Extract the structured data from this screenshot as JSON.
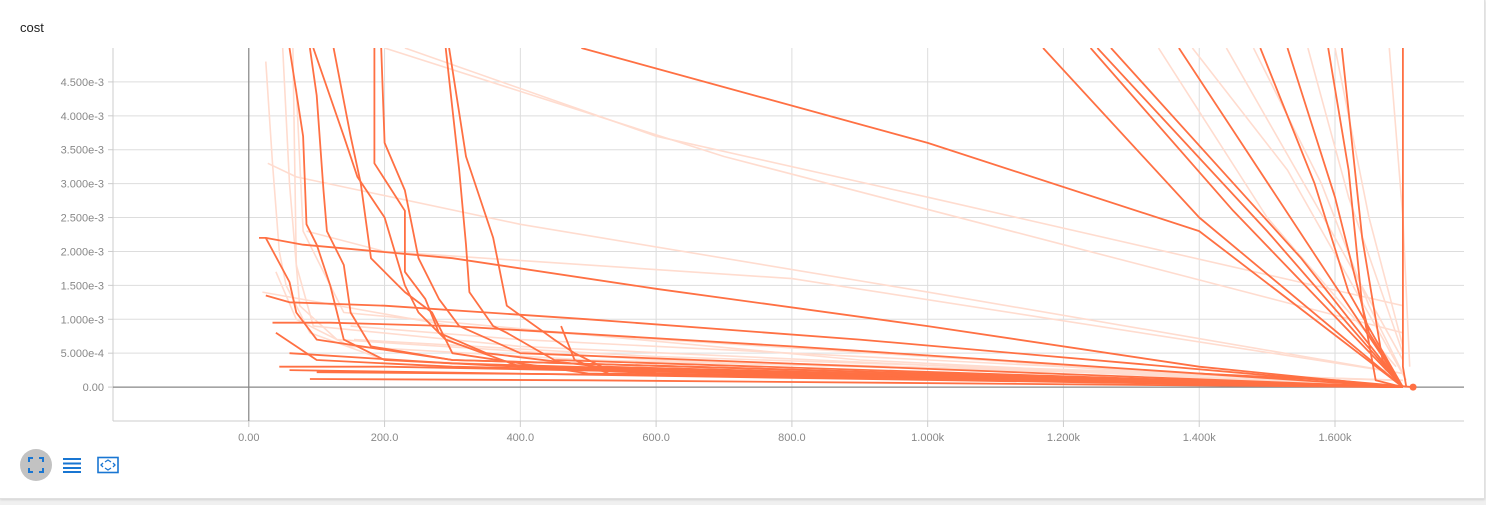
{
  "card": {
    "title": "cost"
  },
  "colors": {
    "run_main": "#ff7043",
    "run_smoothed_background": "#ffdccf",
    "axis": "#888888",
    "grid": "#dddddd"
  },
  "toolbar": {
    "buttons": [
      {
        "name": "fit-domain-button",
        "icon": "expand-icon"
      },
      {
        "name": "toggle-log-scale-button",
        "icon": "list-lines-icon"
      },
      {
        "name": "fit-to-data-button",
        "icon": "frame-icon"
      }
    ]
  },
  "chart_data": {
    "type": "line",
    "title": "cost",
    "xlabel": "",
    "ylabel": "",
    "xlim": [
      -200,
      1790
    ],
    "ylim": [
      -0.0005,
      0.005
    ],
    "grid": true,
    "x_ticks": [
      0,
      200,
      400,
      600,
      800,
      1000,
      1200,
      1400,
      1600
    ],
    "x_tick_labels": [
      "0.00",
      "200.0",
      "400.0",
      "600.0",
      "800.0",
      "1.000k",
      "1.200k",
      "1.400k",
      "1.600k"
    ],
    "y_ticks": [
      0,
      0.0005,
      0.001,
      0.0015,
      0.002,
      0.0025,
      0.003,
      0.0035,
      0.004,
      0.0045
    ],
    "y_tick_labels": [
      "0.00",
      "5.000e-4",
      "1.000e-3",
      "1.500e-3",
      "2.000e-3",
      "2.500e-3",
      "3.000e-3",
      "3.500e-3",
      "4.000e-3",
      "4.500e-3"
    ],
    "last_point": {
      "x": 1715,
      "y": 0.0
    },
    "series": [
      {
        "role": "faded",
        "points": [
          [
            25,
            0.0048
          ],
          [
            35,
            0.0033
          ],
          [
            45,
            0.002
          ],
          [
            55,
            0.0015
          ],
          [
            90,
            0.0008
          ],
          [
            200,
            0.0004
          ],
          [
            700,
            0.0002
          ],
          [
            1715,
            0.0
          ]
        ]
      },
      {
        "role": "faded",
        "points": [
          [
            28,
            0.0033
          ],
          [
            70,
            0.0031
          ],
          [
            400,
            0.0024
          ],
          [
            1000,
            0.0014
          ],
          [
            1700,
            0.0002
          ]
        ]
      },
      {
        "role": "faded",
        "points": [
          [
            40,
            0.0017
          ],
          [
            70,
            0.001
          ],
          [
            150,
            0.0006
          ],
          [
            500,
            0.0004
          ],
          [
            1700,
            0.0001
          ]
        ]
      },
      {
        "role": "faded",
        "points": [
          [
            50,
            0.005
          ],
          [
            60,
            0.003
          ],
          [
            75,
            0.0012
          ],
          [
            130,
            0.0007
          ],
          [
            600,
            0.0004
          ],
          [
            1700,
            0.0001
          ]
        ]
      },
      {
        "role": "faded",
        "points": [
          [
            65,
            0.005
          ],
          [
            70,
            0.0018
          ],
          [
            95,
            0.0009
          ],
          [
            400,
            0.0006
          ],
          [
            1700,
            0.0
          ]
        ]
      },
      {
        "role": "faded",
        "points": [
          [
            70,
            0.0044
          ],
          [
            80,
            0.0023
          ],
          [
            140,
            0.0011
          ],
          [
            900,
            0.0004
          ],
          [
            1700,
            0.0
          ]
        ]
      },
      {
        "role": "faded",
        "points": [
          [
            85,
            0.0023
          ],
          [
            200,
            0.002
          ],
          [
            800,
            0.0016
          ],
          [
            1700,
            0.0002
          ]
        ]
      },
      {
        "role": "faded",
        "points": [
          [
            150,
            0.0009
          ],
          [
            400,
            0.0007
          ],
          [
            1200,
            0.0003
          ],
          [
            1700,
            0.0
          ]
        ]
      },
      {
        "role": "faded",
        "points": [
          [
            230,
            0.005
          ],
          [
            600,
            0.0037
          ],
          [
            1000,
            0.0028
          ],
          [
            1700,
            0.0012
          ]
        ]
      },
      {
        "role": "faded",
        "points": [
          [
            200,
            0.005
          ],
          [
            700,
            0.0034
          ],
          [
            1200,
            0.0021
          ],
          [
            1700,
            0.0008
          ]
        ]
      },
      {
        "role": "faded",
        "points": [
          [
            155,
            0.0007
          ],
          [
            600,
            0.00045
          ],
          [
            1700,
            0.0001
          ]
        ]
      },
      {
        "role": "faded",
        "points": [
          [
            20,
            0.0014
          ],
          [
            300,
            0.0009
          ],
          [
            1700,
            0.0
          ]
        ]
      },
      {
        "role": "faded",
        "points": [
          [
            1340,
            0.005
          ],
          [
            1500,
            0.0025
          ],
          [
            1690,
            0.0003
          ]
        ]
      },
      {
        "role": "faded",
        "points": [
          [
            1440,
            0.005
          ],
          [
            1600,
            0.0022
          ],
          [
            1700,
            0.0004
          ]
        ]
      },
      {
        "role": "faded",
        "points": [
          [
            1560,
            0.005
          ],
          [
            1620,
            0.0028
          ],
          [
            1700,
            0.0005
          ]
        ]
      },
      {
        "role": "faded",
        "points": [
          [
            1600,
            0.005
          ],
          [
            1650,
            0.0025
          ],
          [
            1700,
            0.0006
          ]
        ]
      },
      {
        "role": "faded",
        "points": [
          [
            1680,
            0.005
          ],
          [
            1700,
            0.0025
          ],
          [
            1710,
            0.0003
          ]
        ]
      },
      {
        "role": "faded",
        "points": [
          [
            1480,
            0.005
          ],
          [
            1580,
            0.003
          ],
          [
            1650,
            0.0012
          ],
          [
            1700,
            0.0002
          ]
        ]
      },
      {
        "role": "faded",
        "points": [
          [
            1390,
            0.005
          ],
          [
            1530,
            0.0032
          ],
          [
            1660,
            0.0009
          ],
          [
            1705,
            0.0001
          ]
        ]
      },
      {
        "role": "main",
        "points": [
          [
            15,
            0.0022
          ],
          [
            25,
            0.0022
          ],
          [
            80,
            0.0021
          ],
          [
            300,
            0.0019
          ],
          [
            600,
            0.00145
          ],
          [
            1000,
            0.0009
          ],
          [
            1400,
            0.0003
          ],
          [
            1700,
            0.0
          ]
        ]
      },
      {
        "role": "main",
        "points": [
          [
            25,
            0.0022
          ],
          [
            60,
            0.00155
          ],
          [
            70,
            0.0011
          ],
          [
            100,
            0.0007
          ],
          [
            300,
            0.0004
          ],
          [
            1000,
            0.0002
          ],
          [
            1700,
            0.0
          ]
        ]
      },
      {
        "role": "main",
        "points": [
          [
            25,
            0.00135
          ],
          [
            60,
            0.00125
          ],
          [
            200,
            0.0012
          ],
          [
            500,
            0.001
          ],
          [
            900,
            0.0007
          ],
          [
            1700,
            0.0
          ]
        ]
      },
      {
        "role": "main",
        "points": [
          [
            35,
            0.00095
          ],
          [
            120,
            0.00095
          ],
          [
            300,
            0.0009
          ],
          [
            800,
            0.0006
          ],
          [
            1700,
            0.0
          ]
        ]
      },
      {
        "role": "main",
        "points": [
          [
            40,
            0.0008
          ],
          [
            100,
            0.0004
          ],
          [
            300,
            0.0003
          ],
          [
            1000,
            0.00015
          ],
          [
            1700,
            0.0
          ]
        ]
      },
      {
        "role": "main",
        "points": [
          [
            45,
            0.0003
          ],
          [
            200,
            0.0003
          ],
          [
            1000,
            0.00015
          ],
          [
            1700,
            0.0
          ]
        ]
      },
      {
        "role": "main",
        "points": [
          [
            60,
            0.0005
          ],
          [
            300,
            0.00035
          ],
          [
            1200,
            0.0001
          ],
          [
            1700,
            0.0
          ]
        ]
      },
      {
        "role": "main",
        "points": [
          [
            90,
            0.00012
          ],
          [
            500,
            0.0001
          ],
          [
            1700,
            0.0
          ]
        ]
      },
      {
        "role": "main",
        "points": [
          [
            60,
            0.00025
          ],
          [
            700,
            0.00015
          ],
          [
            1700,
            0.0
          ]
        ]
      },
      {
        "role": "main",
        "points": [
          [
            100,
            0.00022
          ],
          [
            600,
            0.00018
          ],
          [
            1700,
            0.0
          ]
        ]
      },
      {
        "role": "main",
        "points": [
          [
            60,
            0.005
          ],
          [
            80,
            0.0037
          ],
          [
            85,
            0.0024
          ],
          [
            100,
            0.0021
          ],
          [
            120,
            0.0015
          ],
          [
            140,
            0.0007
          ],
          [
            200,
            0.0004
          ],
          [
            600,
            0.0002
          ],
          [
            1700,
            0.0
          ]
        ]
      },
      {
        "role": "main",
        "points": [
          [
            90,
            0.005
          ],
          [
            100,
            0.0043
          ],
          [
            110,
            0.0029
          ],
          [
            115,
            0.0023
          ],
          [
            140,
            0.0018
          ],
          [
            150,
            0.0011
          ],
          [
            180,
            0.0006
          ],
          [
            300,
            0.0004
          ],
          [
            1700,
            0.0
          ]
        ]
      },
      {
        "role": "main",
        "points": [
          [
            95,
            0.005
          ],
          [
            140,
            0.0037
          ],
          [
            160,
            0.0031
          ],
          [
            200,
            0.0025
          ],
          [
            230,
            0.0015
          ],
          [
            250,
            0.0011
          ],
          [
            290,
            0.0007
          ],
          [
            400,
            0.0003
          ],
          [
            1700,
            0.0
          ]
        ]
      },
      {
        "role": "main",
        "points": [
          [
            125,
            0.005
          ],
          [
            150,
            0.0037
          ],
          [
            165,
            0.003
          ],
          [
            180,
            0.0019
          ],
          [
            210,
            0.0016
          ],
          [
            230,
            0.0014
          ],
          [
            270,
            0.0011
          ],
          [
            300,
            0.0005
          ],
          [
            500,
            0.0002
          ],
          [
            1700,
            0.0
          ]
        ]
      },
      {
        "role": "main",
        "points": [
          [
            185,
            0.005
          ],
          [
            185,
            0.0033
          ],
          [
            230,
            0.0026
          ],
          [
            230,
            0.0017
          ],
          [
            260,
            0.0013
          ],
          [
            280,
            0.0008
          ],
          [
            350,
            0.0005
          ],
          [
            600,
            0.0002
          ],
          [
            1700,
            0.0
          ]
        ]
      },
      {
        "role": "main",
        "points": [
          [
            195,
            0.005
          ],
          [
            200,
            0.0036
          ],
          [
            230,
            0.0029
          ],
          [
            250,
            0.0019
          ],
          [
            280,
            0.0013
          ],
          [
            310,
            0.0009
          ],
          [
            400,
            0.0005
          ],
          [
            1700,
            0.0
          ]
        ]
      },
      {
        "role": "main",
        "points": [
          [
            290,
            0.005
          ],
          [
            310,
            0.0032
          ],
          [
            320,
            0.0021
          ],
          [
            325,
            0.0014
          ],
          [
            360,
            0.0009
          ],
          [
            380,
            0.0008
          ],
          [
            450,
            0.0004
          ],
          [
            1700,
            0.0
          ]
        ]
      },
      {
        "role": "main",
        "points": [
          [
            295,
            0.005
          ],
          [
            320,
            0.0034
          ],
          [
            360,
            0.0022
          ],
          [
            380,
            0.0012
          ],
          [
            450,
            0.0007
          ],
          [
            480,
            0.0005
          ],
          [
            520,
            0.0003
          ],
          [
            1700,
            0.0
          ]
        ]
      },
      {
        "role": "main",
        "points": [
          [
            460,
            0.0009
          ],
          [
            480,
            0.0004
          ],
          [
            530,
            0.0002
          ],
          [
            1700,
            0.0
          ]
        ]
      },
      {
        "role": "main",
        "points": [
          [
            490,
            0.005
          ],
          [
            1000,
            0.0036
          ],
          [
            1400,
            0.0023
          ],
          [
            1700,
            0.0
          ]
        ]
      },
      {
        "role": "main",
        "points": [
          [
            1170,
            0.005
          ],
          [
            1400,
            0.0025
          ],
          [
            1700,
            0.0
          ]
        ]
      },
      {
        "role": "main",
        "points": [
          [
            1240,
            0.005
          ],
          [
            1450,
            0.0026
          ],
          [
            1700,
            0.0
          ]
        ]
      },
      {
        "role": "main",
        "points": [
          [
            1250,
            0.005
          ],
          [
            1500,
            0.0023
          ],
          [
            1700,
            0.0
          ]
        ]
      },
      {
        "role": "main",
        "points": [
          [
            1270,
            0.005
          ],
          [
            1550,
            0.0019
          ],
          [
            1700,
            0.0
          ]
        ]
      },
      {
        "role": "main",
        "points": [
          [
            1370,
            0.005
          ],
          [
            1600,
            0.0015
          ],
          [
            1700,
            0.0
          ]
        ]
      },
      {
        "role": "main",
        "points": [
          [
            1490,
            0.005
          ],
          [
            1570,
            0.003
          ],
          [
            1620,
            0.0014
          ],
          [
            1700,
            0.0
          ]
        ]
      },
      {
        "role": "main",
        "points": [
          [
            1530,
            0.005
          ],
          [
            1600,
            0.0028
          ],
          [
            1650,
            0.0008
          ],
          [
            1700,
            0.0
          ]
        ]
      },
      {
        "role": "main",
        "points": [
          [
            1590,
            0.005
          ],
          [
            1620,
            0.0032
          ],
          [
            1640,
            0.0012
          ],
          [
            1660,
            0.0001
          ],
          [
            1700,
            0.0
          ]
        ]
      },
      {
        "role": "main",
        "points": [
          [
            1610,
            0.005
          ],
          [
            1640,
            0.0022
          ],
          [
            1670,
            0.0004
          ],
          [
            1700,
            0.0
          ]
        ]
      },
      {
        "role": "main",
        "points": [
          [
            1700,
            0.005
          ],
          [
            1700,
            0.0003
          ],
          [
            1705,
            0.0
          ]
        ]
      },
      {
        "role": "main",
        "points": [
          [
            1400,
            0.0002
          ],
          [
            1600,
            0.0001
          ],
          [
            1715,
            0.0
          ]
        ]
      }
    ]
  }
}
